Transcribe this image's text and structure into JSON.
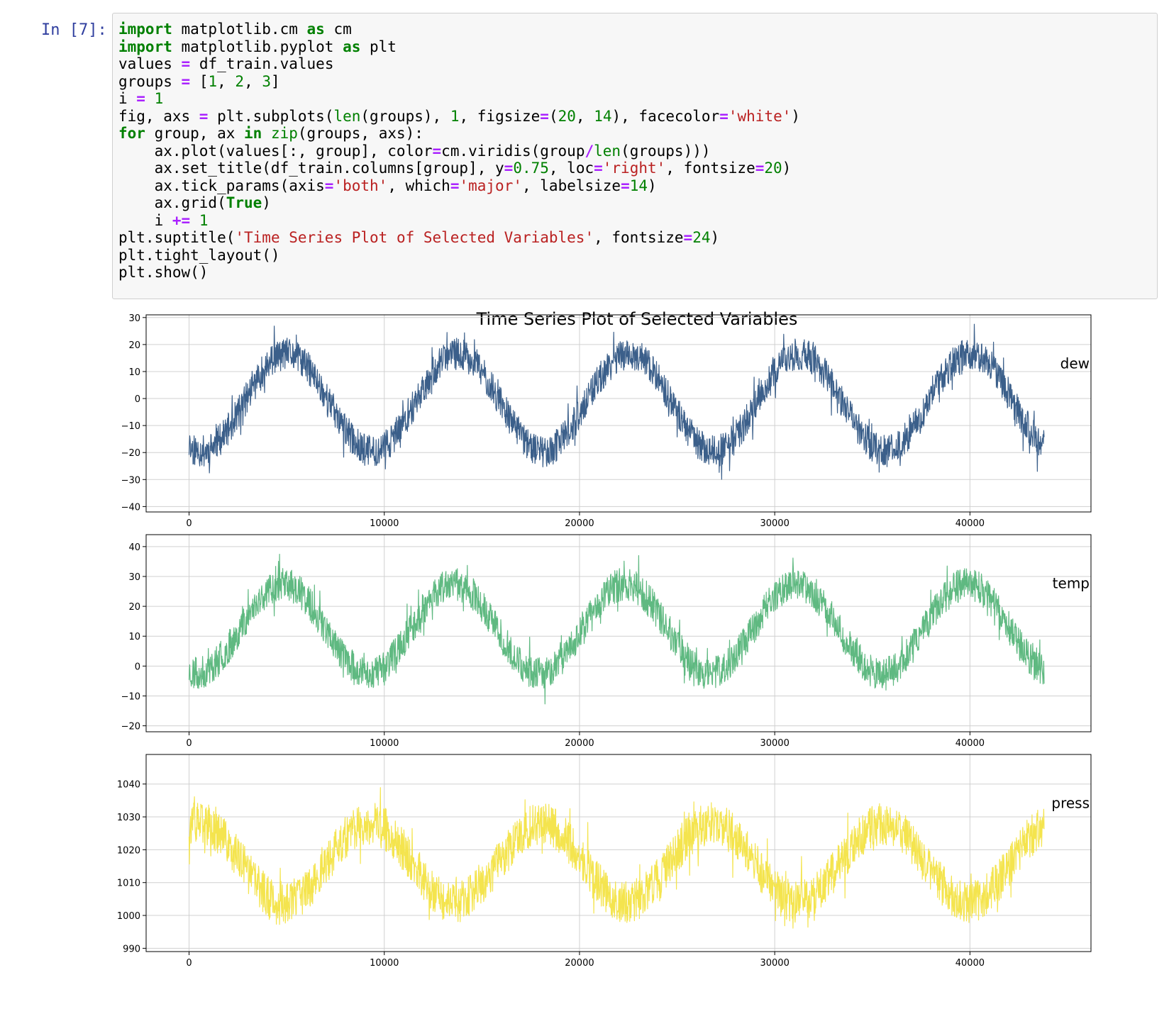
{
  "cell": {
    "prompt": "In [7]:",
    "code_lines": [
      [
        {
          "t": "import",
          "c": "k"
        },
        {
          "t": " matplotlib.cm "
        },
        {
          "t": "as",
          "c": "k"
        },
        {
          "t": " cm"
        }
      ],
      [
        {
          "t": "import",
          "c": "k"
        },
        {
          "t": " matplotlib.pyplot "
        },
        {
          "t": "as",
          "c": "k"
        },
        {
          "t": " plt"
        }
      ],
      [
        {
          "t": "values "
        },
        {
          "t": "=",
          "c": "o"
        },
        {
          "t": " df_train.values"
        }
      ],
      [
        {
          "t": "groups "
        },
        {
          "t": "=",
          "c": "o"
        },
        {
          "t": " ["
        },
        {
          "t": "1",
          "c": "n"
        },
        {
          "t": ", "
        },
        {
          "t": "2",
          "c": "n"
        },
        {
          "t": ", "
        },
        {
          "t": "3",
          "c": "n"
        },
        {
          "t": "]"
        }
      ],
      [
        {
          "t": "i "
        },
        {
          "t": "=",
          "c": "o"
        },
        {
          "t": " "
        },
        {
          "t": "1",
          "c": "n"
        }
      ],
      [
        {
          "t": "fig, axs "
        },
        {
          "t": "=",
          "c": "o"
        },
        {
          "t": " plt.subplots("
        },
        {
          "t": "len",
          "c": "b"
        },
        {
          "t": "(groups), "
        },
        {
          "t": "1",
          "c": "n"
        },
        {
          "t": ", figsize"
        },
        {
          "t": "=",
          "c": "o"
        },
        {
          "t": "("
        },
        {
          "t": "20",
          "c": "n"
        },
        {
          "t": ", "
        },
        {
          "t": "14",
          "c": "n"
        },
        {
          "t": "), facecolor"
        },
        {
          "t": "=",
          "c": "o"
        },
        {
          "t": "'white'",
          "c": "s"
        },
        {
          "t": ")"
        }
      ],
      [
        {
          "t": "for",
          "c": "k"
        },
        {
          "t": " group, ax "
        },
        {
          "t": "in",
          "c": "k"
        },
        {
          "t": " "
        },
        {
          "t": "zip",
          "c": "b"
        },
        {
          "t": "(groups, axs):"
        }
      ],
      [
        {
          "t": "    ax.plot(values[:, group], color"
        },
        {
          "t": "=",
          "c": "o"
        },
        {
          "t": "cm.viridis(group"
        },
        {
          "t": "/",
          "c": "o"
        },
        {
          "t": "len",
          "c": "b"
        },
        {
          "t": "(groups)))"
        }
      ],
      [
        {
          "t": "    ax.set_title(df_train.columns[group], y"
        },
        {
          "t": "=",
          "c": "o"
        },
        {
          "t": "0.75",
          "c": "n"
        },
        {
          "t": ", loc"
        },
        {
          "t": "=",
          "c": "o"
        },
        {
          "t": "'right'",
          "c": "s"
        },
        {
          "t": ", fontsize"
        },
        {
          "t": "=",
          "c": "o"
        },
        {
          "t": "20",
          "c": "n"
        },
        {
          "t": ")"
        }
      ],
      [
        {
          "t": "    ax.tick_params(axis"
        },
        {
          "t": "=",
          "c": "o"
        },
        {
          "t": "'both'",
          "c": "s"
        },
        {
          "t": ", which"
        },
        {
          "t": "=",
          "c": "o"
        },
        {
          "t": "'major'",
          "c": "s"
        },
        {
          "t": ", labelsize"
        },
        {
          "t": "=",
          "c": "o"
        },
        {
          "t": "14",
          "c": "n"
        },
        {
          "t": ")"
        }
      ],
      [
        {
          "t": "    ax.grid("
        },
        {
          "t": "True",
          "c": "k"
        },
        {
          "t": ")"
        }
      ],
      [
        {
          "t": "    i "
        },
        {
          "t": "+=",
          "c": "o"
        },
        {
          "t": " "
        },
        {
          "t": "1",
          "c": "n"
        }
      ],
      [
        {
          "t": "plt.suptitle("
        },
        {
          "t": "'Time Series Plot of Selected Variables'",
          "c": "s"
        },
        {
          "t": ", fontsize"
        },
        {
          "t": "=",
          " c": "o"
        },
        {
          "t": "24",
          "c": "n"
        },
        {
          "t": ")"
        }
      ],
      [
        {
          "t": "plt.tight_layout()"
        }
      ],
      [
        {
          "t": "plt.show()"
        }
      ]
    ]
  },
  "chart_data": {
    "type": "line",
    "title": "Time Series Plot of Selected Variables",
    "subplots": [
      {
        "name": "dew",
        "color": "#3b5f8a",
        "xlim": [
          -2200,
          46200
        ],
        "ylim": [
          -42,
          31
        ],
        "xticks": [
          0,
          10000,
          20000,
          30000,
          40000
        ],
        "yticks": [
          30,
          20,
          10,
          0,
          -10,
          -20,
          -30,
          -40
        ],
        "ytick_labels": [
          "30",
          "20",
          "10",
          "0",
          "−10",
          "−20",
          "−30",
          "−40"
        ],
        "x_max": 43800,
        "seasonal": {
          "period": 8760,
          "phase_peak": 5000,
          "mean": -1.5,
          "amp": 18,
          "noise": 12,
          "seed": 11
        },
        "y_min": -40,
        "y_max": 28,
        "grid": true
      },
      {
        "name": "temp",
        "color": "#5fb981",
        "xlim": [
          -2200,
          46200
        ],
        "ylim": [
          -22,
          44
        ],
        "xticks": [
          0,
          10000,
          20000,
          30000,
          40000
        ],
        "yticks": [
          40,
          30,
          20,
          10,
          0,
          -10,
          -20
        ],
        "ytick_labels": [
          "40",
          "30",
          "20",
          "10",
          "0",
          "−10",
          "−20"
        ],
        "x_max": 43800,
        "seasonal": {
          "period": 8760,
          "phase_peak": 4800,
          "mean": 12.5,
          "amp": 15,
          "noise": 11,
          "seed": 23
        },
        "y_min": -19,
        "y_max": 42,
        "grid": true
      },
      {
        "name": "press",
        "color": "#f4e44e",
        "xlim": [
          -2200,
          46200
        ],
        "ylim": [
          989,
          1049
        ],
        "xticks": [
          0,
          10000,
          20000,
          30000,
          40000
        ],
        "yticks": [
          1040,
          1030,
          1020,
          1010,
          1000,
          990
        ],
        "ytick_labels": [
          "1040",
          "1030",
          "1020",
          "1010",
          "1000",
          "990"
        ],
        "x_max": 43800,
        "seasonal": {
          "period": 8760,
          "phase_peak": 500,
          "mean": 1016,
          "amp": 12,
          "noise": 13,
          "seed": 37
        },
        "y_min": 991,
        "y_max": 1046,
        "grid": true
      }
    ],
    "xtick_labels": [
      "0",
      "10000",
      "20000",
      "30000",
      "40000"
    ]
  }
}
